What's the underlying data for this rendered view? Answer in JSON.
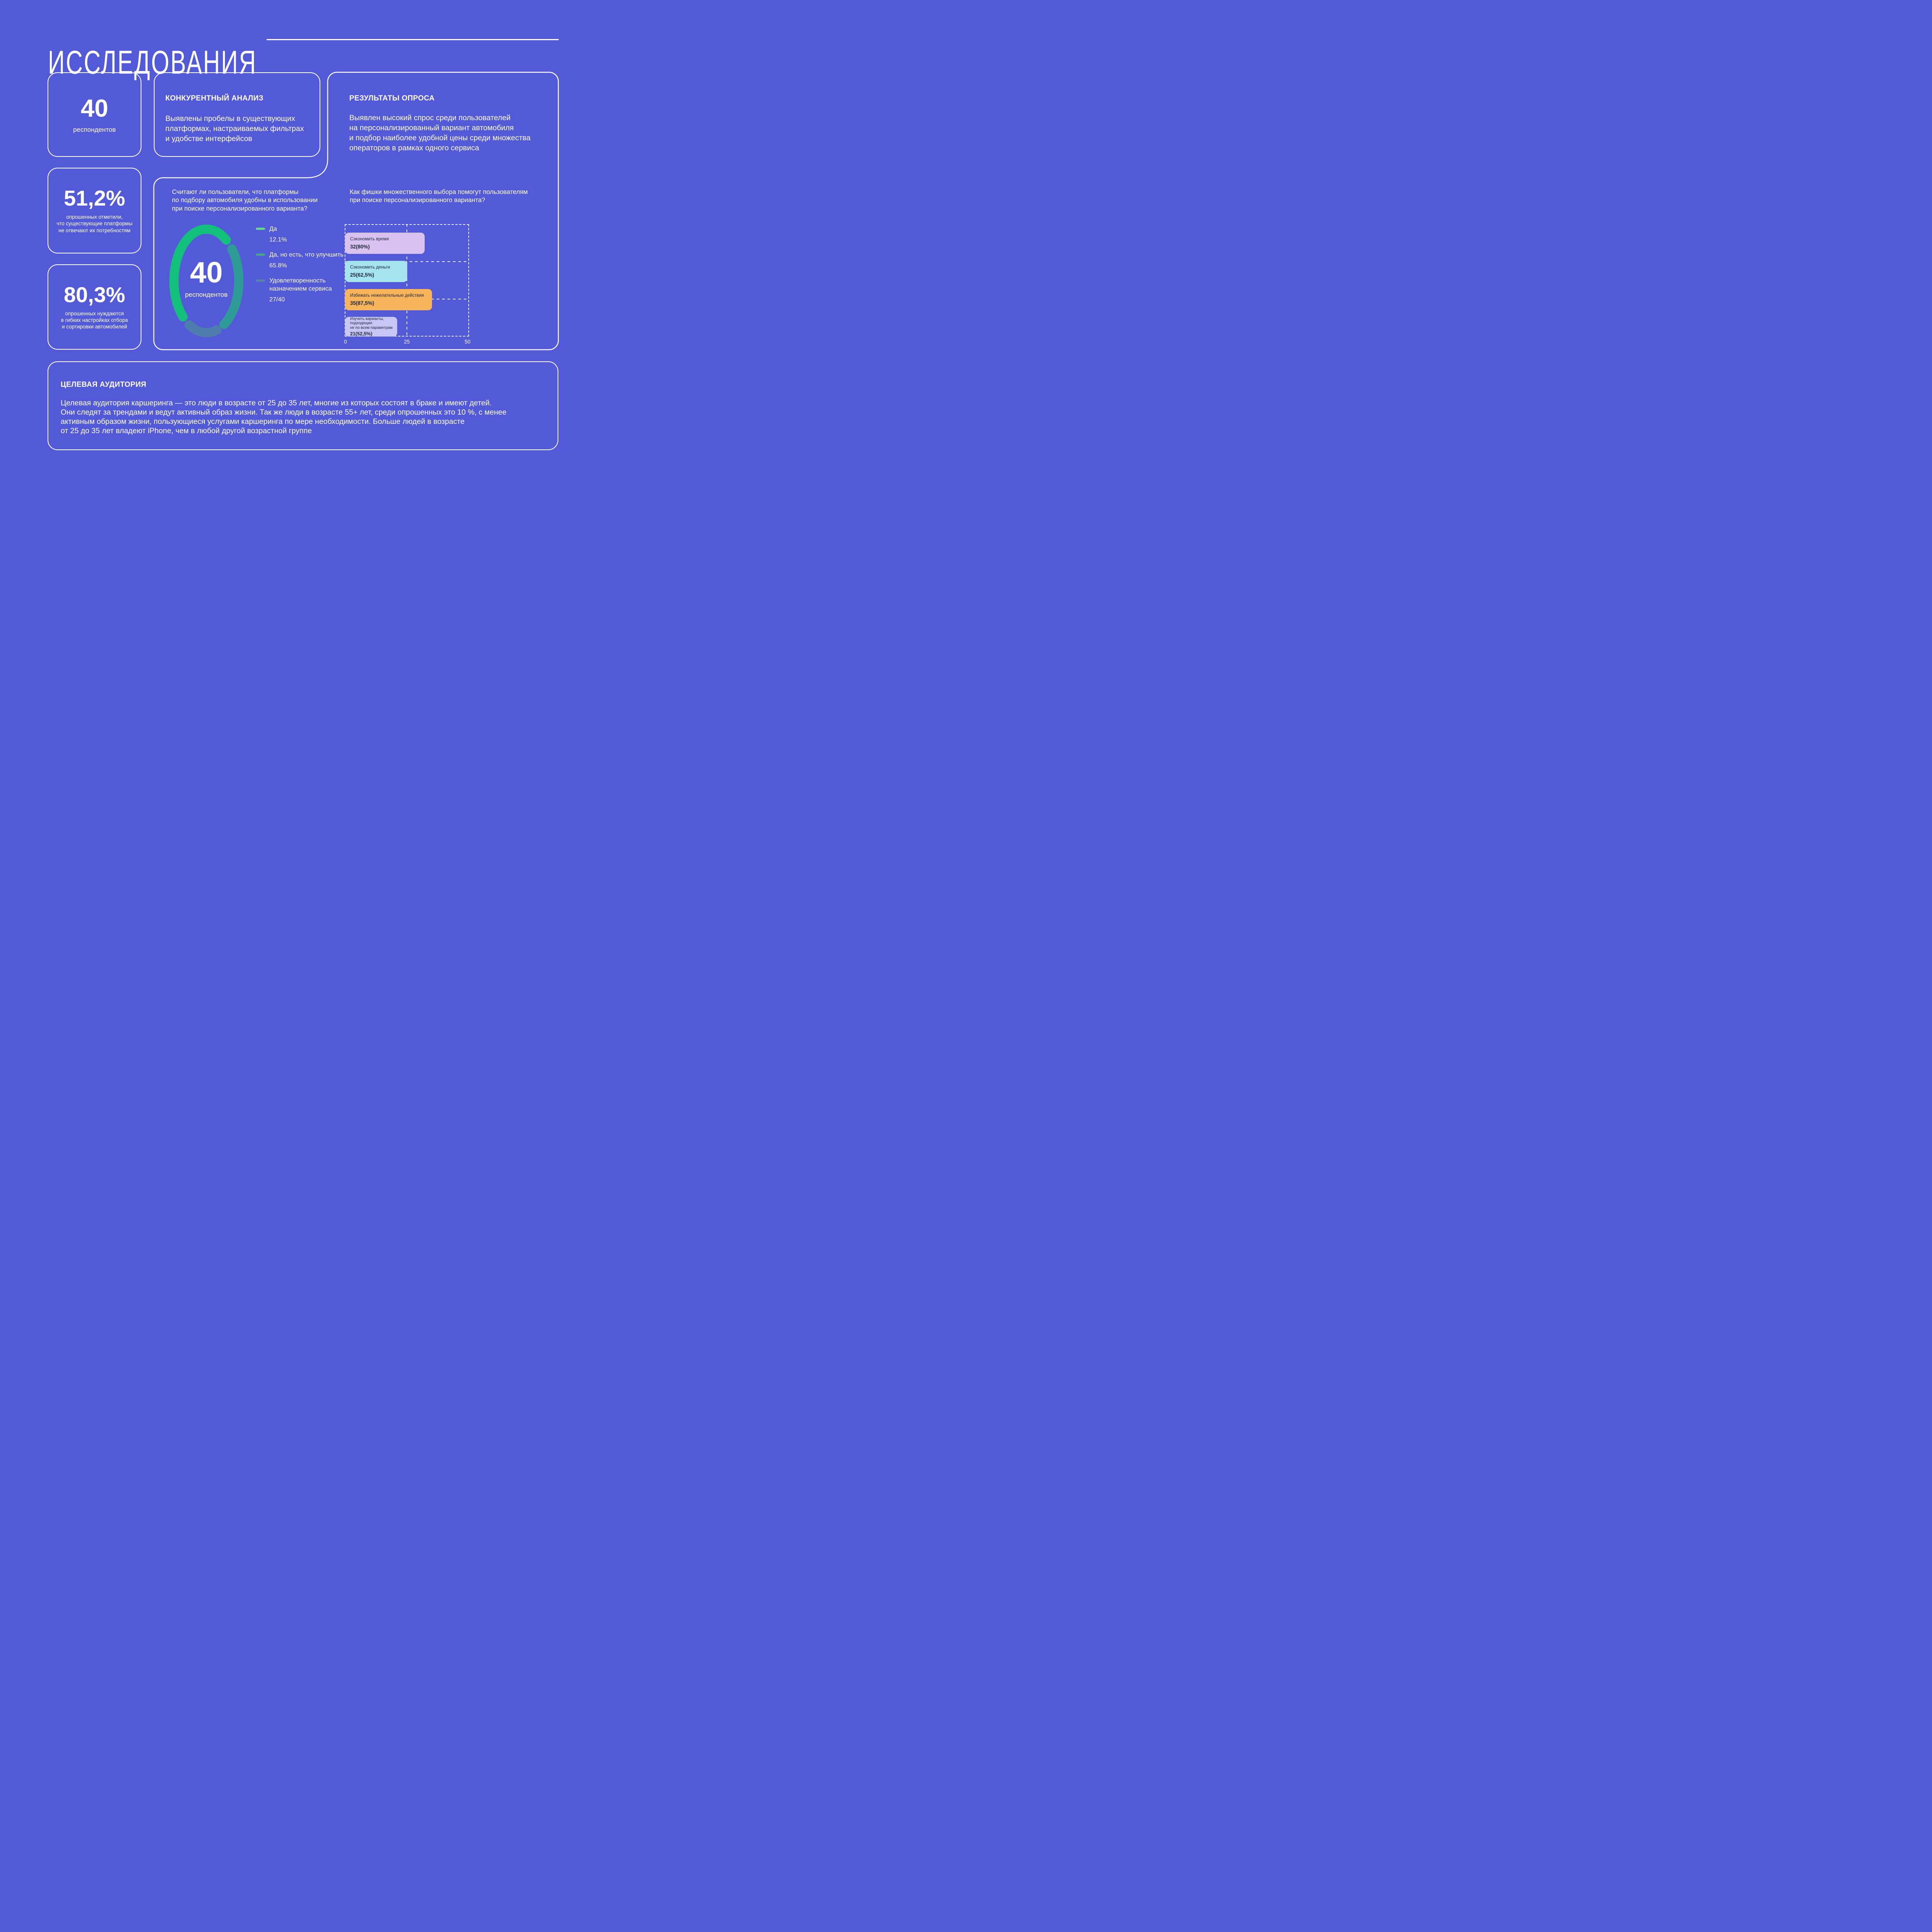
{
  "page": {
    "title": "ИССЛЕДОВАНИЯ"
  },
  "stat_cards": [
    {
      "value": "40",
      "label": "респондентов"
    },
    {
      "value": "51,2%",
      "label": "опрошенных отметили,\nчто существующие платформы\nне отвечают их потребностям"
    },
    {
      "value": "80,3%",
      "label": "опрошенных нуждаются\nв гибких настройках отбора\nи сортировки автомобилей"
    }
  ],
  "cards": {
    "competitive": {
      "title": "КОНКУРЕНТНЫЙ АНАЛИЗ",
      "body": "Выявлены пробелы в существующих\nплатформах, настраиваемых фильтрах\nи удобстве интерфейсов"
    },
    "survey": {
      "title": "РЕЗУЛЬТАТЫ ОПРОСА",
      "body": "Выявлен высокий спрос среди пользователей\nна персонализированный вариант автомобиля\nи подбор наиболее удобной цены среди множества\nоператоров в рамках одного сервиса"
    },
    "audience": {
      "title": "ЦЕЛЕВАЯ АУДИТОРИЯ",
      "body": "Целевая аудитория каршеринга — это люди в возрасте от 25 до 35 лет, многие из которых состоят в браке и имеют детей.\nОни следят за трендами и ведут активный образ жизни. Так же люди в возрасте 55+ лет, среди опрошенных это 10 %, с менее\nактивным образом жизни, пользующиеся услугами каршеринга по мере необходимости. Больше людей в возрасте\nот 25 до 35 лет владеют iPhone, чем в любой другой возрастной группе"
    }
  },
  "chart_data": [
    {
      "type": "donut",
      "question": "Считают ли пользователи, что платформы\nпо подбору автомобиля удобны в использовании\nпри поиске персонализированного варианта?",
      "center_value": "40",
      "center_label": "респондентов",
      "legend_position": "right",
      "segments": [
        {
          "label": "Да",
          "value": "12.1%",
          "color": "#63d68c"
        },
        {
          "label": "Да, но есть, что улучшить",
          "value": "65.8%",
          "color": "#46a38c"
        },
        {
          "label": "Удовлетворенность\nназначением сервиса",
          "value": "27/40",
          "color": "#5b82ab"
        }
      ],
      "arc_colors": {
        "main": "#12c07c",
        "right": "#2f9b96",
        "bottom": "#4d7cad"
      }
    },
    {
      "type": "bar",
      "question": "Как фишки множественного выбора помогут пользователям\nпри поиске персонализированного варианта?",
      "orientation": "horizontal",
      "xlim": [
        0,
        50
      ],
      "ticks": [
        "0",
        "25",
        "50"
      ],
      "grid": "dashed",
      "bars": [
        {
          "label": "Сэкономить время",
          "value": 32,
          "value_label": "32(80%)",
          "color": "#d9c2f0"
        },
        {
          "label": "Сэкономить деньги",
          "value": 25,
          "value_label": "25(62,5%)",
          "color": "#a5e3ee"
        },
        {
          "label": "Избежать нежелательные действия",
          "value": 35,
          "value_label": "35(87,5%)",
          "color": "#f7b45b"
        },
        {
          "label": "Изучить варианты, подходящие\nне по всем параметрам",
          "value": 21,
          "value_label": "21(52,5%)",
          "color": "#c7c7f5"
        }
      ]
    }
  ],
  "colors": {
    "background": "#535ad8",
    "card_border": "#ffffff",
    "text": "#ffffff",
    "bar_text": "#20283f"
  }
}
